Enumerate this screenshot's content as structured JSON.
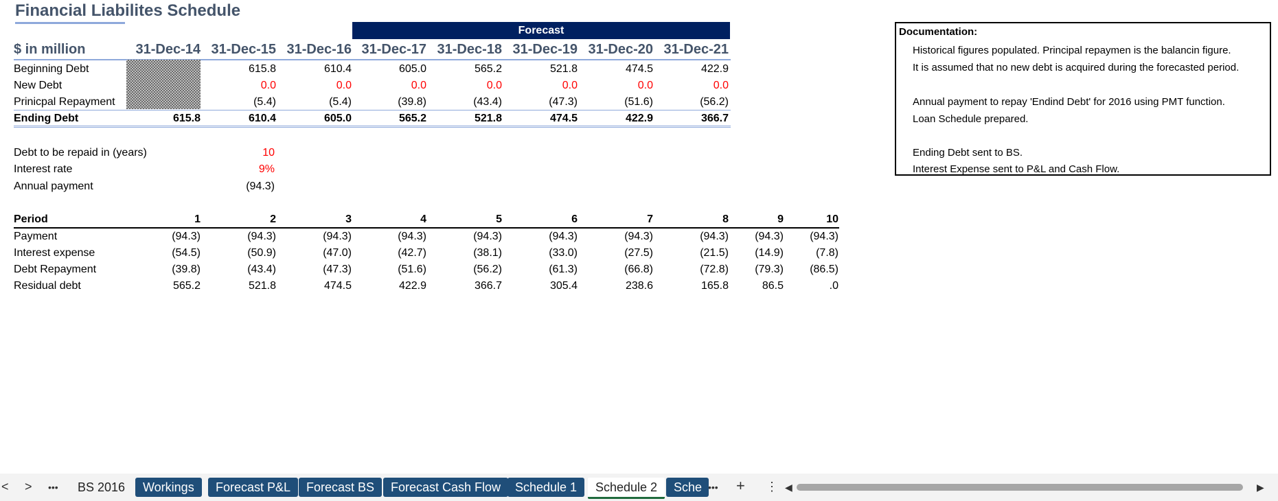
{
  "title": "Financial Liabilites Schedule",
  "forecast_label": "Forecast",
  "schedule": {
    "unit_label": "$ in million",
    "dates": [
      "31-Dec-14",
      "31-Dec-15",
      "31-Dec-16",
      "31-Dec-17",
      "31-Dec-18",
      "31-Dec-19",
      "31-Dec-20",
      "31-Dec-21"
    ],
    "rows": [
      {
        "label": "Beginning Debt",
        "values": [
          "",
          "615.8",
          "610.4",
          "605.0",
          "565.2",
          "521.8",
          "474.5",
          "422.9"
        ]
      },
      {
        "label": "New Debt",
        "values": [
          "",
          "0.0",
          "0.0",
          "0.0",
          "0.0",
          "0.0",
          "0.0",
          "0.0"
        ]
      },
      {
        "label": "Prinicpal Repayment",
        "values": [
          "",
          "(5.4)",
          "(5.4)",
          "(39.8)",
          "(43.4)",
          "(47.3)",
          "(51.6)",
          "(56.2)"
        ]
      },
      {
        "label": "Ending Debt",
        "values": [
          "615.8",
          "610.4",
          "605.0",
          "565.2",
          "521.8",
          "474.5",
          "422.9",
          "366.7"
        ]
      }
    ]
  },
  "inputs": [
    {
      "label": "Debt to be repaid in (years)",
      "value": "10"
    },
    {
      "label": "Interest rate",
      "value": "9%"
    },
    {
      "label": "Annual payment",
      "value": "(94.3)"
    }
  ],
  "loan": {
    "period_label": "Period",
    "periods": [
      "1",
      "2",
      "3",
      "4",
      "5",
      "6",
      "7",
      "8",
      "9",
      "10"
    ],
    "rows": [
      {
        "label": "Payment",
        "values": [
          "(94.3)",
          "(94.3)",
          "(94.3)",
          "(94.3)",
          "(94.3)",
          "(94.3)",
          "(94.3)",
          "(94.3)",
          "(94.3)",
          "(94.3)"
        ]
      },
      {
        "label": "Interest expense",
        "values": [
          "(54.5)",
          "(50.9)",
          "(47.0)",
          "(42.7)",
          "(38.1)",
          "(33.0)",
          "(27.5)",
          "(21.5)",
          "(14.9)",
          "(7.8)"
        ]
      },
      {
        "label": "Debt Repayment",
        "values": [
          "(39.8)",
          "(43.4)",
          "(47.3)",
          "(51.6)",
          "(56.2)",
          "(61.3)",
          "(66.8)",
          "(72.8)",
          "(79.3)",
          "(86.5)"
        ]
      },
      {
        "label": "Residual debt",
        "values": [
          "565.2",
          "521.8",
          "474.5",
          "422.9",
          "366.7",
          "305.4",
          "238.6",
          "165.8",
          "86.5",
          ".0"
        ]
      }
    ]
  },
  "documentation": {
    "title": "Documentation:",
    "lines": [
      "Historical figures populated. Principal repaymen is the balancin figure.",
      "It is assumed that no new debt is acquired during the forecasted period.",
      "",
      "Annual payment to repay 'Endind Debt' for 2016 using PMT function.",
      "Loan Schedule prepared.",
      "",
      "Ending Debt sent to BS.",
      "Interest Expense sent to P&L and Cash Flow."
    ]
  },
  "tabbar": {
    "nav_prev": "<",
    "nav_next": ">",
    "more": "•••",
    "tabs": [
      {
        "label": "BS 2016",
        "style": "plain"
      },
      {
        "label": "Workings",
        "style": "blue"
      },
      {
        "label": "Forecast P&L",
        "style": "blue"
      },
      {
        "label": "Forecast BS",
        "style": "blue"
      },
      {
        "label": "Forecast Cash Flow",
        "style": "blue"
      },
      {
        "label": "Schedule 1",
        "style": "blue"
      },
      {
        "label": "Schedule 2",
        "style": "active"
      },
      {
        "label": "Sche",
        "style": "blue"
      }
    ],
    "more2": "•••",
    "add": "+",
    "menu": "⋮"
  },
  "colors": {
    "title": "#44546a",
    "forecast_bar": "#002060",
    "tab_blue": "#1f4e79",
    "red_input": "#ff0000",
    "rule": "#8ea9db"
  }
}
